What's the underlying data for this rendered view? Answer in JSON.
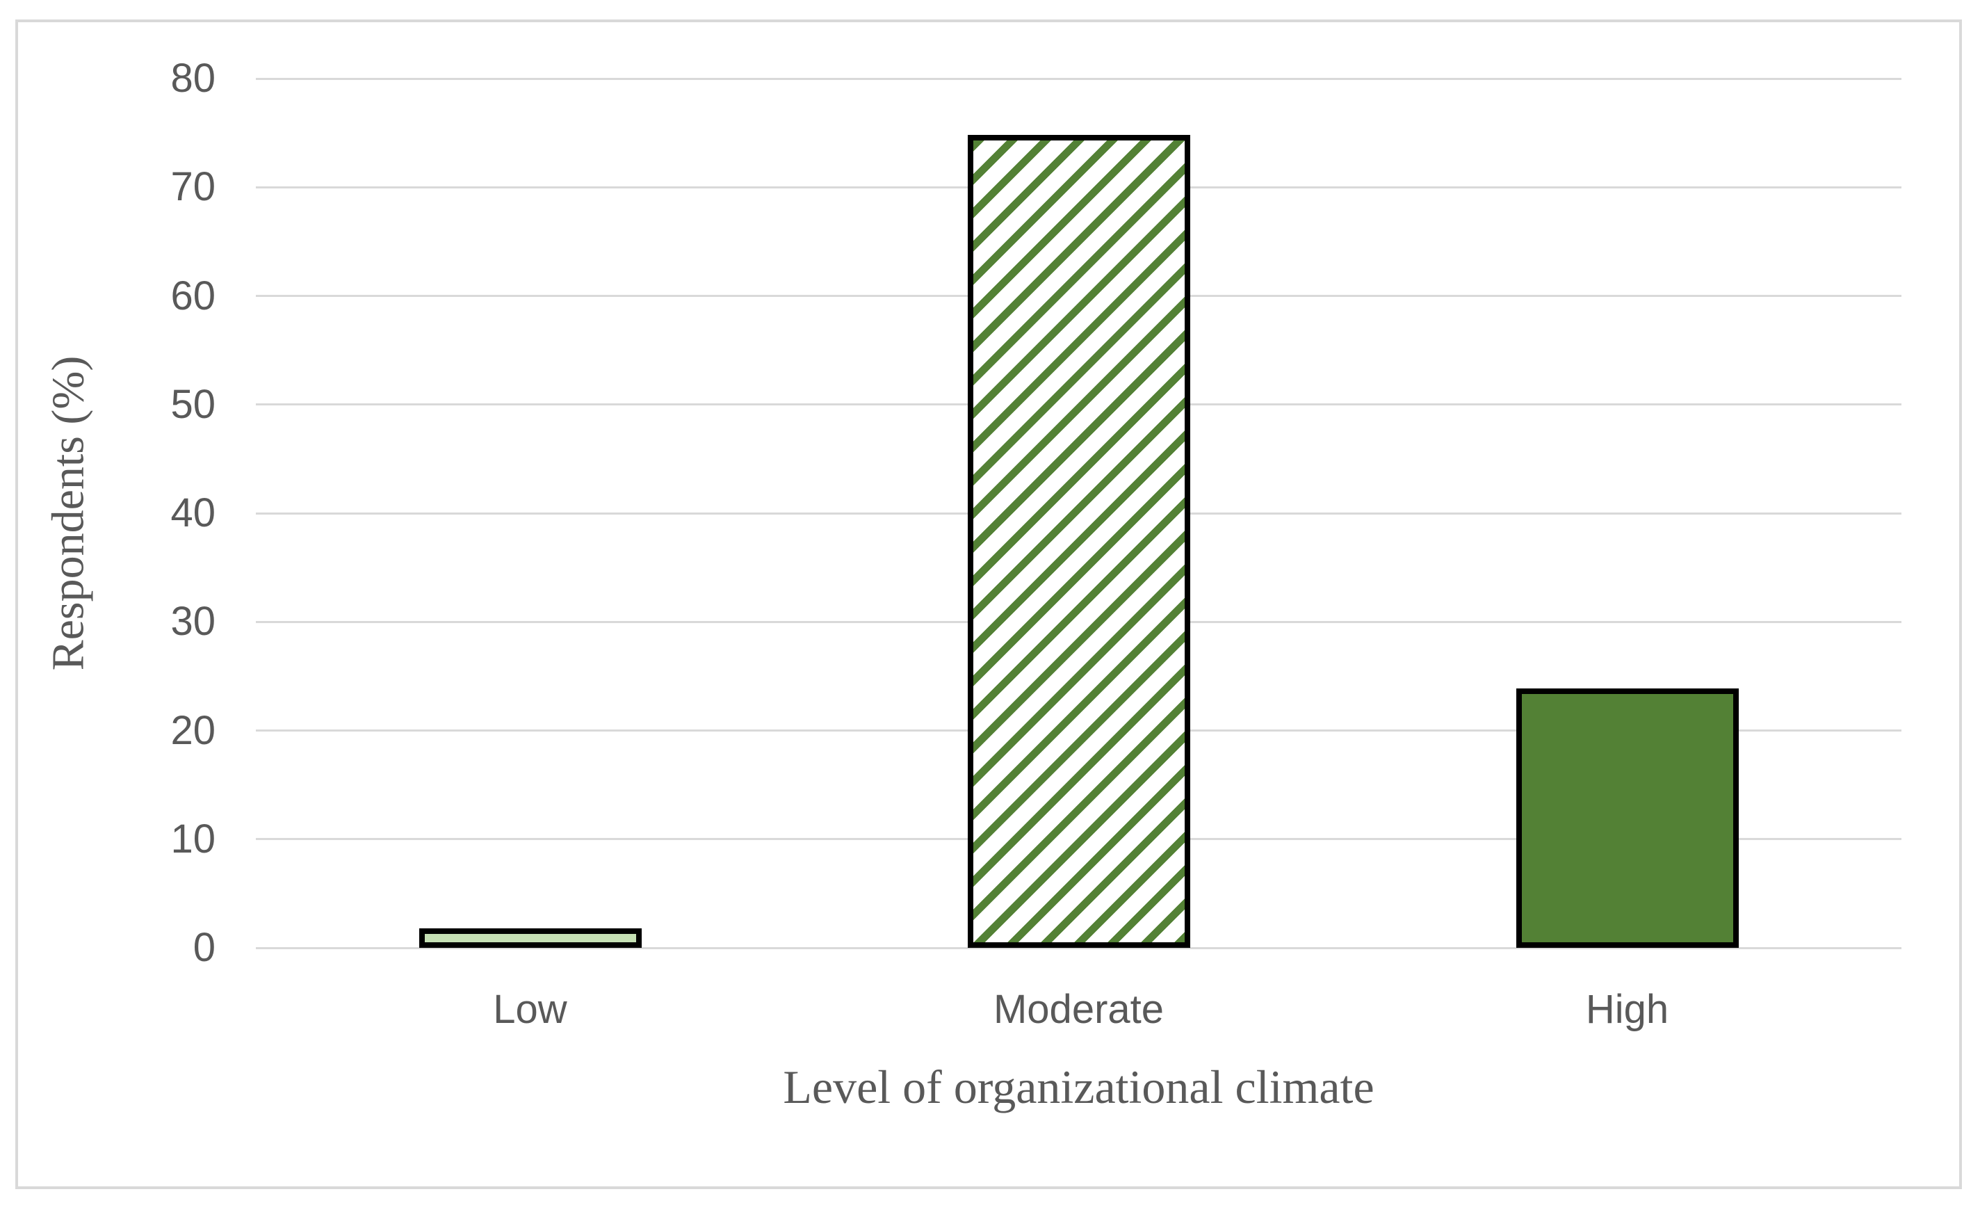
{
  "chart_data": {
    "type": "bar",
    "title": "",
    "categories": [
      "Low",
      "Moderate",
      "High"
    ],
    "values": [
      1.8,
      74.8,
      23.9
    ],
    "xlabel": "Level of organizational climate",
    "ylabel": "Respondents (%)",
    "ylim": [
      0,
      80
    ],
    "yticks": [
      0,
      10,
      20,
      30,
      40,
      50,
      60,
      70,
      80
    ],
    "grid": true,
    "legend": false,
    "bar_styles": [
      {
        "category": "Low",
        "fill": "#c5e0b4",
        "pattern": "solid"
      },
      {
        "category": "Moderate",
        "fill": "#ffffff",
        "pattern": "diagonal-hatch",
        "hatch_color": "#538135"
      },
      {
        "category": "High",
        "fill": "#538135",
        "pattern": "solid"
      }
    ],
    "colors": {
      "bar_border": "#000000",
      "gridline": "#d9d9d9",
      "frame_border": "#d9d9d9",
      "text": "#595959",
      "background": "#ffffff"
    }
  }
}
